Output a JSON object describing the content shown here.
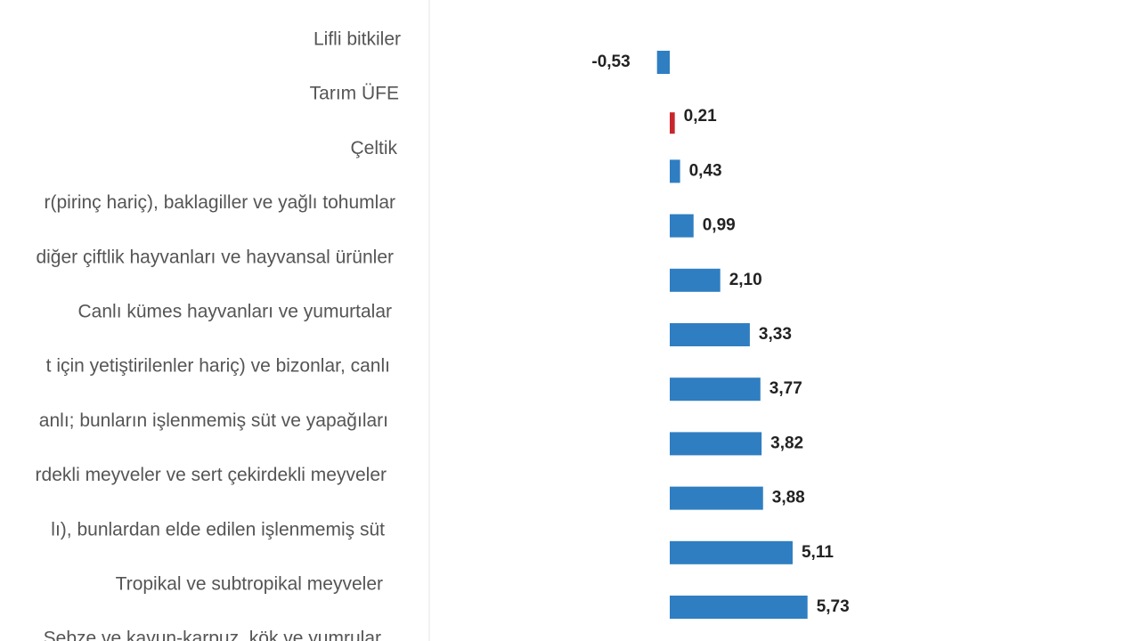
{
  "chart_data": {
    "type": "barh",
    "categories": [
      "Lifli bitkiler",
      "Tarım ÜFE",
      "Çeltik",
      "r(pirinç hariç), baklagiller ve yağlı tohumlar",
      "diğer çiftlik hayvanları ve hayvansal ürünler",
      "Canlı kümes hayvanları ve yumurtalar",
      "t için yetiştirilenler hariç) ve bizonlar, canlı",
      "anlı; bunların işlenmemiş süt ve yapağıları",
      "rdekli meyveler ve sert çekirdekli meyveler",
      "lı), bunlardan elde edilen işlenmemiş süt",
      "Tropikal ve subtropikal meyveler",
      "Sebze ve kavun-karpuz, kök ve yumrular"
    ],
    "values": [
      -0.53,
      0.21,
      0.43,
      0.99,
      2.1,
      3.33,
      3.77,
      3.82,
      3.88,
      5.11,
      5.73,
      null
    ],
    "value_labels": [
      "-0,53",
      "0,21",
      "0,43",
      "0,99",
      "2,10",
      "3,33",
      "3,77",
      "3,82",
      "3,88",
      "5,11",
      "5,73",
      null
    ],
    "colors": [
      "#2f7ec1",
      "#c8262c",
      "#2f7ec1",
      "#2f7ec1",
      "#2f7ec1",
      "#2f7ec1",
      "#2f7ec1",
      "#2f7ec1",
      "#2f7ec1",
      "#2f7ec1",
      "#2f7ec1",
      "#2f7ec1"
    ],
    "xlim": [
      -1,
      6
    ]
  }
}
